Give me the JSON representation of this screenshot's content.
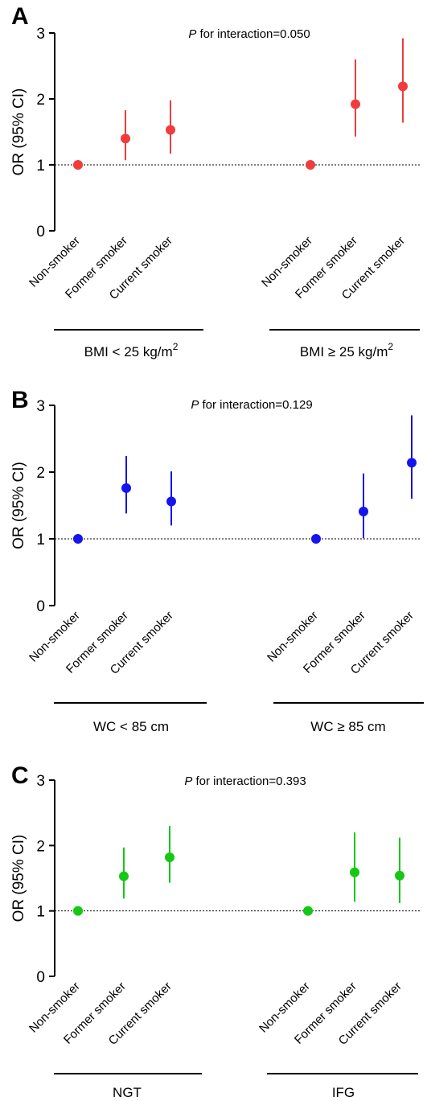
{
  "chart_data": [
    {
      "panel": "A",
      "type": "scatter",
      "annotation": {
        "italic": "P",
        "text": " for interaction=0.050"
      },
      "ylabel": "OR (95% CI)",
      "ylim": [
        0,
        3
      ],
      "yticks": [
        "0",
        "1",
        "2",
        "3"
      ],
      "reference_line": 1,
      "color": "#f03c3c",
      "groups": [
        {
          "label": "BMI < 25 kg/m",
          "label_sup": "2",
          "categories": [
            "Non-smoker",
            "Former smoker",
            "Current smoker"
          ],
          "values": [
            1.0,
            1.4,
            1.53
          ],
          "ci_lower": [
            1.0,
            1.07,
            1.17
          ],
          "ci_upper": [
            1.0,
            1.83,
            1.98
          ]
        },
        {
          "label": "BMI ≥ 25 kg/m",
          "label_sup": "2",
          "categories": [
            "Non-smoker",
            "Former smoker",
            "Current smoker"
          ],
          "values": [
            1.0,
            1.92,
            2.19
          ],
          "ci_lower": [
            1.0,
            1.43,
            1.64
          ],
          "ci_upper": [
            1.0,
            2.6,
            2.92
          ]
        }
      ]
    },
    {
      "panel": "B",
      "type": "scatter",
      "annotation": {
        "italic": "P",
        "text": " for interaction=0.129"
      },
      "ylabel": "OR (95% CI)",
      "ylim": [
        0,
        3
      ],
      "yticks": [
        "0",
        "1",
        "2",
        "3"
      ],
      "reference_line": 1,
      "color": "#1414f0",
      "groups": [
        {
          "label": "WC < 85 cm",
          "label_sup": "",
          "categories": [
            "Non-smoker",
            "Former smoker",
            "Current smoker"
          ],
          "values": [
            1.0,
            1.76,
            1.56
          ],
          "ci_lower": [
            1.0,
            1.38,
            1.2
          ],
          "ci_upper": [
            1.0,
            2.24,
            2.01
          ]
        },
        {
          "label": "WC ≥ 85 cm",
          "label_sup": "",
          "categories": [
            "Non-smoker",
            "Former smoker",
            "Current smoker"
          ],
          "values": [
            1.0,
            1.41,
            2.14
          ],
          "ci_lower": [
            1.0,
            1.01,
            1.6
          ],
          "ci_upper": [
            1.0,
            1.98,
            2.85
          ]
        }
      ]
    },
    {
      "panel": "C",
      "type": "scatter",
      "annotation": {
        "italic": "P",
        "text": " for interaction=0.393"
      },
      "ylabel": "OR (95% CI)",
      "ylim": [
        0,
        3
      ],
      "yticks": [
        "0",
        "1",
        "2",
        "3"
      ],
      "reference_line": 1,
      "color": "#14c814",
      "groups": [
        {
          "label": "NGT",
          "label_sup": "",
          "categories": [
            "Non-smoker",
            "Former smoker",
            "Current smoker"
          ],
          "values": [
            1.0,
            1.53,
            1.82
          ],
          "ci_lower": [
            1.0,
            1.19,
            1.43
          ],
          "ci_upper": [
            1.0,
            1.97,
            2.3
          ]
        },
        {
          "label": "IFG",
          "label_sup": "",
          "categories": [
            "Non-smoker",
            "Former smoker",
            "Current smoker"
          ],
          "values": [
            1.0,
            1.59,
            1.54
          ],
          "ci_lower": [
            1.0,
            1.14,
            1.12
          ],
          "ci_upper": [
            1.0,
            2.2,
            2.12
          ]
        }
      ]
    }
  ]
}
